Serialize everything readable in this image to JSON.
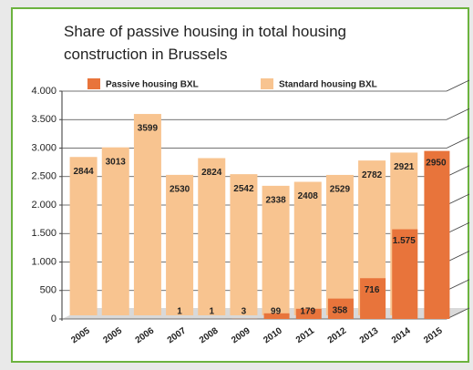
{
  "chart_data": {
    "type": "bar",
    "title": "Share of passive housing in total housing construction in Brussels",
    "categories": [
      "2005",
      "2005",
      "2006",
      "2007",
      "2008",
      "2009",
      "2010",
      "2011",
      "2012",
      "2013",
      "2014",
      "2015"
    ],
    "series": [
      {
        "name": "Passive housing BXL",
        "color": "#e8743b",
        "values": [
          null,
          null,
          null,
          1,
          1,
          3,
          99,
          179,
          358,
          716,
          1575,
          2950
        ],
        "value_labels": [
          null,
          null,
          null,
          "1",
          "1",
          "3",
          "99",
          "179",
          "358",
          "716",
          "1.575",
          "2950"
        ]
      },
      {
        "name": "Standard housing BXL",
        "color": "#f8c490",
        "values": [
          2844,
          3013,
          3599,
          2530,
          2824,
          2542,
          2338,
          2408,
          2529,
          2782,
          2921,
          null
        ]
      }
    ],
    "ylim": [
      0,
      4000
    ],
    "yticks": [
      0,
      500,
      {
        "value": 1000,
        "label": "1.000"
      },
      {
        "value": 1500,
        "label": "1.500"
      },
      {
        "value": 2000,
        "label": "2.000"
      },
      {
        "value": 2500,
        "label": "2.500"
      },
      {
        "value": 3000,
        "label": "3.000"
      },
      {
        "value": 3500,
        "label": "3.500"
      },
      {
        "value": 4000,
        "label": "4.000"
      }
    ],
    "grid": true
  }
}
